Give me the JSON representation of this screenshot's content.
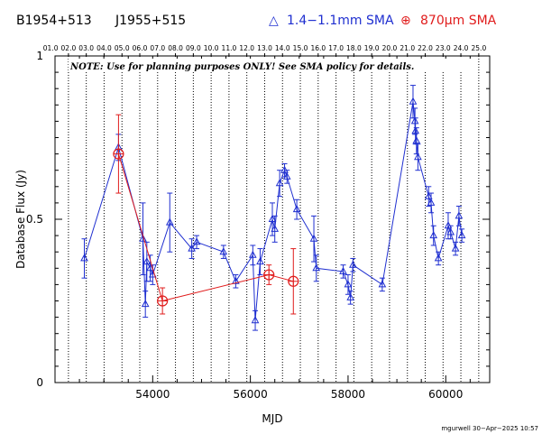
{
  "header": {
    "source_name": "B1954+513",
    "alt_name": "J1955+515",
    "legend_blue_symbol": "△",
    "legend_blue_label": "1.4−1.1mm SMA",
    "legend_red_symbol": "⊕",
    "legend_red_label": "870μm SMA"
  },
  "colors": {
    "blue": "#1f2fd0",
    "red": "#e01c1c",
    "axis": "#000000"
  },
  "chart_data": {
    "type": "scatter",
    "xlabel": "MJD",
    "ylabel": "Database Flux (Jy)",
    "xlim": [
      52000,
      60900
    ],
    "ylim": [
      0,
      1
    ],
    "x_ticks": [
      54000,
      56000,
      58000,
      60000
    ],
    "x_tick_labels": [
      "54000",
      "56000",
      "58000",
      "60000"
    ],
    "y_ticks": [
      0,
      0.5,
      1
    ],
    "y_tick_labels": [
      "0",
      "0.5",
      "1"
    ],
    "note": "NOTE: Use for planning purposes ONLY!  See SMA policy for details.",
    "credit": "mgurwell 30−Apr−2025 10:57",
    "top_axis": {
      "year_mjd": [
        51910,
        52275,
        52640,
        53005,
        53371,
        53736,
        54101,
        54466,
        54832,
        55197,
        55562,
        55927,
        56293,
        56658,
        57023,
        57388,
        57754,
        58119,
        58484,
        58849,
        59215,
        59580,
        59945,
        60310,
        60676
      ],
      "year_labels": [
        "01.0",
        "02.0",
        "03.0",
        "04.0",
        "05.0",
        "06.0",
        "07.0",
        "08.0",
        "09.0",
        "10.0",
        "11.0",
        "12.0",
        "13.0",
        "14.0",
        "15.0",
        "16.0",
        "17.0",
        "18.0",
        "19.0",
        "20.0",
        "21.0",
        "22.0",
        "23.0",
        "24.0",
        "25.0"
      ]
    },
    "series": [
      {
        "name": "1.4−1.1mm SMA",
        "color": "#1f2fd0",
        "marker": "triangle",
        "x": [
          52600,
          53300,
          53800,
          53850,
          53880,
          53950,
          54000,
          54350,
          54800,
          54900,
          55450,
          55700,
          56050,
          56100,
          56200,
          56450,
          56500,
          56600,
          56700,
          56750,
          56950,
          57300,
          57350,
          57900,
          58000,
          58050,
          58100,
          58700,
          59330,
          59370,
          59380,
          59400,
          59430,
          59650,
          59700,
          59750,
          59850,
          60050,
          60100,
          60200,
          60270,
          60330
        ],
        "y": [
          0.38,
          0.72,
          0.44,
          0.24,
          0.37,
          0.35,
          0.33,
          0.49,
          0.41,
          0.43,
          0.4,
          0.31,
          0.39,
          0.19,
          0.37,
          0.5,
          0.47,
          0.61,
          0.65,
          0.63,
          0.53,
          0.44,
          0.35,
          0.34,
          0.3,
          0.26,
          0.36,
          0.3,
          0.86,
          0.8,
          0.77,
          0.74,
          0.69,
          0.57,
          0.55,
          0.45,
          0.38,
          0.48,
          0.46,
          0.41,
          0.51,
          0.45
        ],
        "yerr": [
          0.06,
          0.04,
          0.11,
          0.04,
          0.06,
          0.04,
          0.03,
          0.09,
          0.03,
          0.02,
          0.02,
          0.02,
          0.03,
          0.03,
          0.04,
          0.05,
          0.04,
          0.04,
          0.02,
          0.02,
          0.03,
          0.07,
          0.04,
          0.02,
          0.03,
          0.02,
          0.02,
          0.02,
          0.05,
          0.04,
          0.04,
          0.04,
          0.04,
          0.03,
          0.03,
          0.03,
          0.02,
          0.04,
          0.02,
          0.02,
          0.03,
          0.02
        ]
      },
      {
        "name": "870μm SMA",
        "color": "#e01c1c",
        "marker": "circle-plus",
        "x": [
          53300,
          54200,
          56380,
          56880
        ],
        "y": [
          0.7,
          0.25,
          0.33,
          0.31
        ],
        "yerr": [
          0.12,
          0.04,
          0.03,
          0.1
        ]
      }
    ]
  }
}
